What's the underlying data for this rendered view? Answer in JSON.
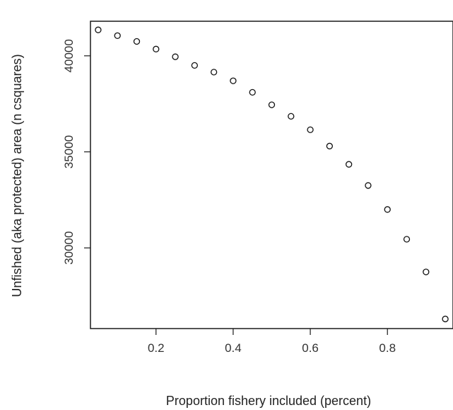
{
  "chart_data": {
    "type": "scatter",
    "title": "",
    "xlabel": "Proportion fishery included (percent)",
    "ylabel": "Unfished (aka protected) area (n csquares)",
    "xlim": [
      0.03,
      0.97
    ],
    "ylim": [
      25800,
      41800
    ],
    "x_ticks": [
      0.2,
      0.4,
      0.6,
      0.8
    ],
    "x_tick_labels": [
      "0.2",
      "0.4",
      "0.6",
      "0.8"
    ],
    "y_ticks": [
      30000,
      35000,
      40000
    ],
    "y_tick_labels": [
      "30000",
      "35000",
      "40000"
    ],
    "grid": false,
    "marker": "open-circle",
    "points": [
      {
        "x": 0.05,
        "y": 41350
      },
      {
        "x": 0.1,
        "y": 41050
      },
      {
        "x": 0.15,
        "y": 40750
      },
      {
        "x": 0.2,
        "y": 40350
      },
      {
        "x": 0.25,
        "y": 39950
      },
      {
        "x": 0.3,
        "y": 39500
      },
      {
        "x": 0.35,
        "y": 39150
      },
      {
        "x": 0.4,
        "y": 38700
      },
      {
        "x": 0.45,
        "y": 38100
      },
      {
        "x": 0.5,
        "y": 37450
      },
      {
        "x": 0.55,
        "y": 36850
      },
      {
        "x": 0.6,
        "y": 36150
      },
      {
        "x": 0.65,
        "y": 35300
      },
      {
        "x": 0.7,
        "y": 34350
      },
      {
        "x": 0.75,
        "y": 33250
      },
      {
        "x": 0.8,
        "y": 32000
      },
      {
        "x": 0.85,
        "y": 30450
      },
      {
        "x": 0.9,
        "y": 28750
      },
      {
        "x": 0.95,
        "y": 26300
      }
    ]
  }
}
